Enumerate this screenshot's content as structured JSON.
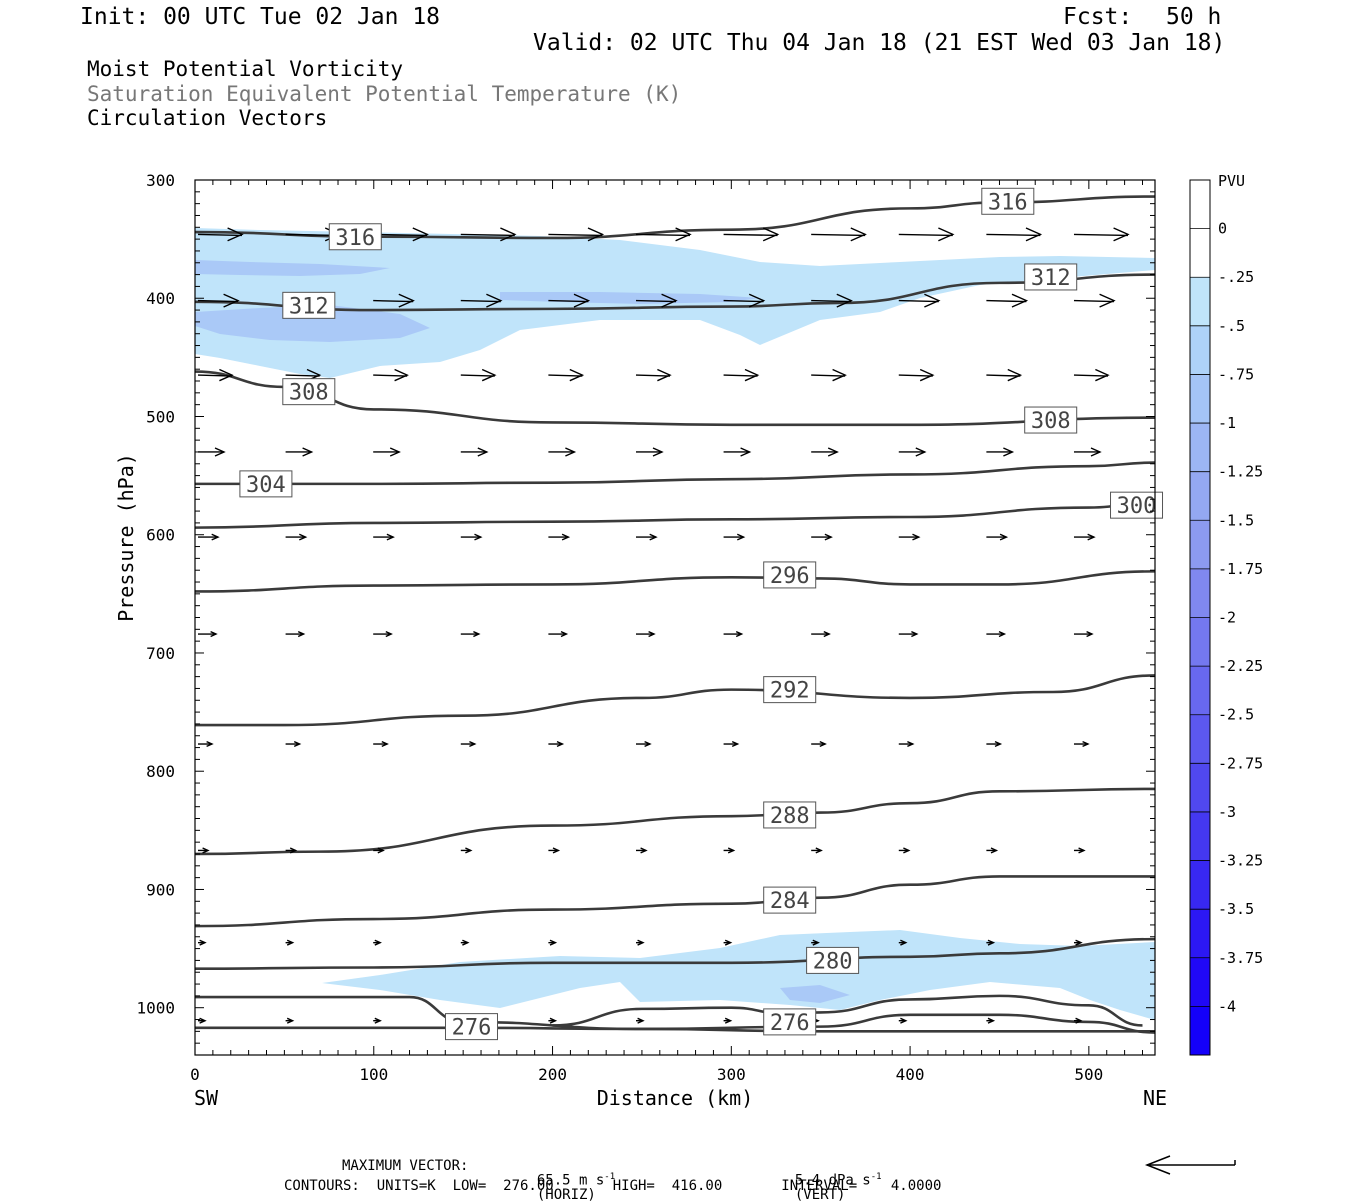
{
  "header": {
    "init": "Init: 00 UTC Tue 02 Jan 18",
    "fcst_label": "Fcst:",
    "fcst_value": "50 h",
    "valid": "Valid: 02 UTC Thu 04 Jan 18 (21 EST Wed 03 Jan 18)"
  },
  "titles": {
    "line1": "Moist Potential Vorticity",
    "line2": "Saturation Equivalent Potential Temperature (K)",
    "line3": "Circulation Vectors"
  },
  "colors": {
    "contour": "#3a3a3a",
    "pv_light": "#c0e4fa",
    "pv_mid": "#aac9f7",
    "colorbar": [
      "#ffffff",
      "#ffffff",
      "#c0e4fa",
      "#aed2f8",
      "#a4c4f6",
      "#9cb6f4",
      "#94a8f2",
      "#8c9af0",
      "#8088ef",
      "#7478ef",
      "#6868ef",
      "#5c58ef",
      "#5048ef",
      "#4438f0",
      "#3828f2",
      "#2c18f4",
      "#2008f6",
      "#1400fa"
    ]
  },
  "footer": {
    "maxvec_label": "MAXIMUM VECTOR:",
    "maxvec_horiz": "65.5 m s",
    "maxvec_horiz_unit": "(HORIZ)",
    "maxvec_vert": "5.4 dPa s",
    "maxvec_vert_unit": "(VERT)",
    "exponent": "-1",
    "contours": "CONTOURS:  UNITS=K  LOW=  276.00       HIGH=  416.00       INTERVAL=    4.0000"
  },
  "chart_data": {
    "type": "cross-section",
    "xlabel": "Distance (km)",
    "ylabel": "Pressure (hPa)",
    "xlim": [
      0,
      537
    ],
    "ylim": [
      1040,
      300
    ],
    "y_scale": "linear, inverted",
    "x_ticks": [
      0,
      100,
      200,
      300,
      400,
      500
    ],
    "y_ticks": [
      300,
      400,
      500,
      600,
      700,
      800,
      900,
      1000
    ],
    "x_end_labels": {
      "left": "SW",
      "right": "NE"
    },
    "colorbar": {
      "unit": "PVU",
      "labels": [
        "0",
        "-.25",
        "-.5",
        "-.75",
        "-1",
        "-1.25",
        "-1.5",
        "-1.75",
        "-2",
        "-2.25",
        "-2.5",
        "-2.75",
        "-3",
        "-3.25",
        "-3.5",
        "-3.75",
        "-4"
      ]
    },
    "theta_es_contours": [
      {
        "value": 316,
        "label": "316",
        "label_at": [
          [
            74,
            348
          ],
          [
            439,
            318
          ]
        ],
        "x": [
          0,
          100,
          200,
          300,
          400,
          450,
          537
        ],
        "y": [
          344,
          348,
          349,
          342,
          324,
          319,
          314
        ]
      },
      {
        "value": 312,
        "label": "312",
        "label_at": [
          [
            48,
            406
          ],
          [
            463,
            382
          ]
        ],
        "x": [
          0,
          100,
          200,
          300,
          360,
          450,
          537
        ],
        "y": [
          403,
          410,
          409,
          407,
          404,
          387,
          380
        ]
      },
      {
        "value": 308,
        "label": "308",
        "label_at": [
          [
            48,
            479
          ],
          [
            463,
            503
          ]
        ],
        "x": [
          0,
          50,
          100,
          200,
          300,
          400,
          537
        ],
        "y": [
          462,
          475,
          494,
          505,
          507,
          507,
          501
        ]
      },
      {
        "value": 304,
        "label": "304",
        "label_at": [
          [
            24,
            557
          ]
        ],
        "x": [
          0,
          100,
          200,
          300,
          400,
          500,
          537
        ],
        "y": [
          557,
          557,
          556,
          553,
          549,
          542,
          539
        ]
      },
      {
        "value": 300,
        "label": "300",
        "label_at": [
          [
            511,
            575
          ]
        ],
        "x": [
          0,
          100,
          200,
          300,
          400,
          500,
          537
        ],
        "y": [
          594,
          590,
          589,
          587,
          585,
          577,
          572
        ]
      },
      {
        "value": 296,
        "label": "296",
        "label_at": [
          [
            317,
            634
          ]
        ],
        "x": [
          0,
          100,
          200,
          300,
          350,
          400,
          450,
          537
        ],
        "y": [
          648,
          643,
          642,
          636,
          637,
          642,
          642,
          631
        ]
      },
      {
        "value": 292,
        "label": "292",
        "label_at": [
          [
            317,
            731
          ]
        ],
        "x": [
          0,
          50,
          150,
          250,
          300,
          400,
          480,
          537
        ],
        "y": [
          761,
          761,
          753,
          738,
          731,
          738,
          733,
          719
        ]
      },
      {
        "value": 288,
        "label": "288",
        "label_at": [
          [
            317,
            837
          ]
        ],
        "x": [
          0,
          70,
          200,
          300,
          350,
          400,
          450,
          537
        ],
        "y": [
          870,
          868,
          846,
          838,
          835,
          827,
          817,
          815
        ]
      },
      {
        "value": 284,
        "label": "284",
        "label_at": [
          [
            317,
            909
          ]
        ],
        "x": [
          0,
          100,
          200,
          300,
          350,
          400,
          450,
          537
        ],
        "y": [
          931,
          925,
          917,
          912,
          907,
          896,
          889,
          889
        ]
      },
      {
        "value": 280,
        "label": "280",
        "label_at": [
          [
            341,
            960
          ]
        ],
        "x": [
          0,
          100,
          200,
          300,
          400,
          450,
          537
        ],
        "y": [
          967,
          966,
          962,
          962,
          957,
          954,
          942
        ]
      },
      {
        "value": 276,
        "label": "276",
        "label_at": [
          [
            139,
            1016
          ]
        ],
        "x": [
          0,
          120,
          150,
          250,
          350,
          537
        ],
        "y": [
          991,
          991,
          1012,
          1018,
          1020,
          1020
        ]
      },
      {
        "value": 276,
        "label": "276",
        "label_at": [
          [
            317,
            1012
          ]
        ],
        "x": [
          200,
          250,
          300,
          330,
          350,
          400,
          450,
          500,
          530
        ],
        "y": [
          1015,
          1001,
          1000,
          1005,
          1004,
          993,
          990,
          998,
          1015
        ]
      },
      {
        "value": 276,
        "label": "",
        "label_at": [],
        "x": [
          0,
          150,
          250,
          350,
          400,
          450,
          500,
          537
        ],
        "y": [
          1017,
          1017,
          1018,
          1016,
          1006,
          1006,
          1012,
          1021
        ]
      }
    ],
    "vector_levels": [
      {
        "p": 346,
        "u": [
          38,
          48,
          48,
          48,
          48,
          48,
          48,
          48,
          48,
          48,
          48
        ]
      },
      {
        "p": 402,
        "u": [
          34,
          34,
          34,
          34,
          34,
          34,
          34,
          34,
          34,
          34,
          34
        ]
      },
      {
        "p": 465,
        "u": [
          28,
          28,
          28,
          28,
          28,
          28,
          28,
          28,
          28,
          28,
          28
        ]
      },
      {
        "p": 530,
        "u": [
          20,
          20,
          20,
          20,
          20,
          20,
          20,
          20,
          20,
          20,
          20
        ]
      },
      {
        "p": 602,
        "u": [
          14,
          14,
          14,
          14,
          14,
          14,
          14,
          14,
          14,
          14,
          14
        ]
      },
      {
        "p": 684,
        "u": [
          12,
          12,
          12,
          12,
          12,
          12,
          12,
          12,
          12,
          12,
          12
        ]
      },
      {
        "p": 777,
        "u": [
          8,
          8,
          8,
          8,
          8,
          8,
          8,
          8,
          8,
          8,
          8
        ]
      },
      {
        "p": 867,
        "u": [
          4,
          4,
          4,
          4,
          4,
          4,
          4,
          4,
          4,
          4,
          4
        ]
      },
      {
        "p": 945,
        "u": [
          1,
          1,
          1,
          1,
          1,
          1,
          1,
          1,
          1,
          1,
          1
        ]
      },
      {
        "p": 1011,
        "u": [
          1,
          1,
          1,
          1,
          1,
          1,
          1,
          1,
          1,
          1,
          1
        ]
      }
    ],
    "vector_x": [
      0,
      49,
      98,
      147,
      196,
      245,
      294,
      343,
      392,
      441,
      490
    ]
  }
}
